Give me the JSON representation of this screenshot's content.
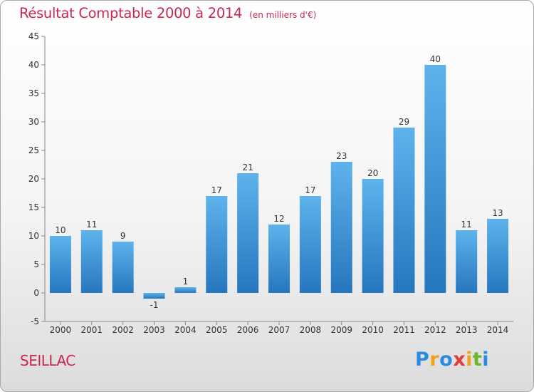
{
  "title": "Résultat Comptable 2000 à 2014",
  "unit_note": "(en milliers d'€)",
  "commune": "SEILLAC",
  "logo": {
    "letters": [
      "P",
      "r",
      "o",
      "x",
      "i",
      "t",
      "i"
    ],
    "colors": [
      "#2a8be0",
      "#f2a21e",
      "#2a8be0",
      "#e23b3b",
      "#f2a21e",
      "#6cb52d",
      "#2a8be0"
    ]
  },
  "colors": {
    "accent": "#c8284f",
    "bar_top": "#5eb3ec",
    "bar_bottom": "#2676be"
  },
  "chart_data": {
    "type": "bar",
    "title": "Résultat Comptable 2000 à 2014",
    "xlabel": "",
    "ylabel": "",
    "ylim": [
      -5,
      45
    ],
    "yticks": [
      -5,
      0,
      5,
      10,
      15,
      20,
      25,
      30,
      35,
      40,
      45
    ],
    "grid": false,
    "categories": [
      "2000",
      "2001",
      "2002",
      "2003",
      "2004",
      "2005",
      "2006",
      "2007",
      "2008",
      "2009",
      "2010",
      "2011",
      "2012",
      "2013",
      "2014"
    ],
    "values": [
      10,
      11,
      9,
      -1,
      1,
      17,
      21,
      12,
      17,
      23,
      20,
      29,
      40,
      11,
      13
    ],
    "labels": [
      "10",
      "11",
      "9",
      "-1",
      "1",
      "17",
      "21",
      "12",
      "17",
      "23",
      "20",
      "29",
      "40",
      "11",
      "13"
    ]
  }
}
